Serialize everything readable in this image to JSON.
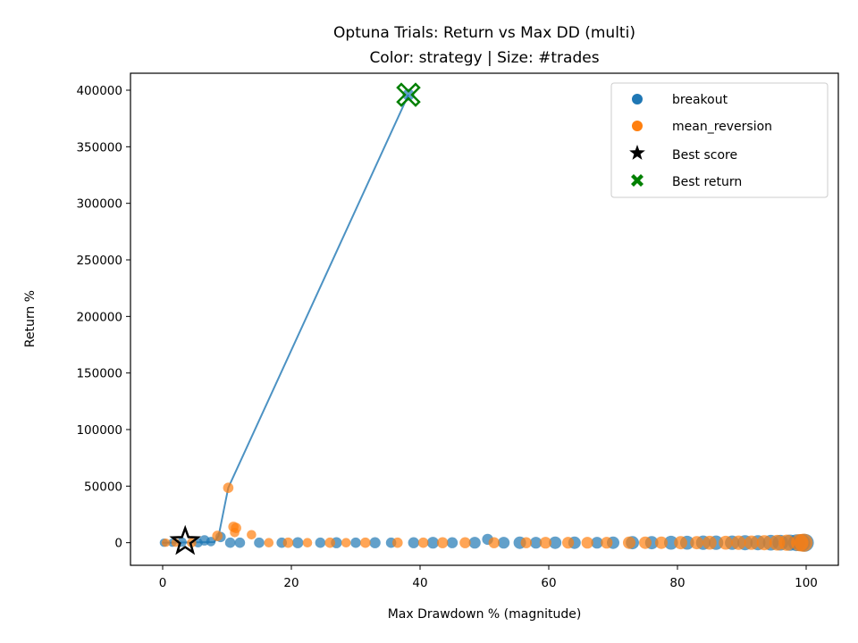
{
  "chart_data": {
    "type": "scatter",
    "title": "Optuna Trials: Return vs Max DD (multi)",
    "subtitle": "Color: strategy | Size: #trades",
    "xlabel": "Max Drawdown % (magnitude)",
    "ylabel": "Return %",
    "xlim": [
      -5,
      105
    ],
    "ylim": [
      -20000,
      415000
    ],
    "x_ticks": [
      0,
      20,
      40,
      60,
      80,
      100
    ],
    "y_ticks": [
      0,
      50000,
      100000,
      150000,
      200000,
      250000,
      300000,
      350000,
      400000
    ],
    "grid": false,
    "legend_position": "top-right",
    "colors": {
      "breakout": "#1f77b4",
      "mean_reversion": "#ff7f0e",
      "best_score": "#000000",
      "best_return": "#008000"
    },
    "series": [
      {
        "name": "breakout",
        "points": [
          [
            0.2,
            0,
            20
          ],
          [
            1.5,
            0,
            20
          ],
          [
            3.0,
            500,
            25
          ],
          [
            5.5,
            0,
            25
          ],
          [
            6.5,
            2000,
            30
          ],
          [
            7.5,
            1000,
            25
          ],
          [
            9.0,
            5000,
            30
          ],
          [
            10.5,
            0,
            30
          ],
          [
            12.0,
            0,
            30
          ],
          [
            15.0,
            0,
            30
          ],
          [
            18.5,
            0,
            30
          ],
          [
            21.0,
            0,
            35
          ],
          [
            24.5,
            0,
            30
          ],
          [
            27.0,
            0,
            35
          ],
          [
            30.0,
            0,
            30
          ],
          [
            33.0,
            0,
            35
          ],
          [
            35.5,
            0,
            30
          ],
          [
            38.2,
            396000,
            40
          ],
          [
            39.0,
            0,
            35
          ],
          [
            42.0,
            0,
            40
          ],
          [
            45.0,
            0,
            35
          ],
          [
            48.5,
            0,
            40
          ],
          [
            50.5,
            3000,
            35
          ],
          [
            53.0,
            0,
            40
          ],
          [
            55.5,
            0,
            45
          ],
          [
            58.0,
            0,
            40
          ],
          [
            61.0,
            0,
            45
          ],
          [
            64.0,
            0,
            45
          ],
          [
            67.5,
            0,
            40
          ],
          [
            70.0,
            0,
            45
          ],
          [
            73.0,
            0,
            50
          ],
          [
            76.0,
            0,
            50
          ],
          [
            79.0,
            0,
            55
          ],
          [
            81.5,
            0,
            55
          ],
          [
            84.0,
            0,
            60
          ],
          [
            86.0,
            0,
            60
          ],
          [
            88.5,
            0,
            60
          ],
          [
            90.5,
            0,
            65
          ],
          [
            92.5,
            0,
            65
          ],
          [
            94.5,
            0,
            70
          ],
          [
            96.0,
            0,
            70
          ],
          [
            97.5,
            0,
            75
          ],
          [
            98.5,
            0,
            80
          ],
          [
            99.3,
            0,
            85
          ],
          [
            99.8,
            0,
            90
          ]
        ]
      },
      {
        "name": "mean_reversion",
        "points": [
          [
            0.5,
            0,
            20
          ],
          [
            2.0,
            0,
            20
          ],
          [
            4.5,
            0,
            25
          ],
          [
            8.5,
            6000,
            30
          ],
          [
            10.2,
            48500,
            30
          ],
          [
            11.0,
            14000,
            30
          ],
          [
            11.4,
            13000,
            30
          ],
          [
            11.2,
            9000,
            25
          ],
          [
            13.8,
            7000,
            25
          ],
          [
            16.5,
            0,
            25
          ],
          [
            19.5,
            0,
            30
          ],
          [
            22.5,
            0,
            25
          ],
          [
            26.0,
            0,
            30
          ],
          [
            28.5,
            0,
            25
          ],
          [
            31.5,
            0,
            30
          ],
          [
            36.5,
            0,
            30
          ],
          [
            40.5,
            0,
            30
          ],
          [
            43.5,
            0,
            35
          ],
          [
            47.0,
            0,
            35
          ],
          [
            51.5,
            0,
            35
          ],
          [
            56.5,
            0,
            35
          ],
          [
            59.5,
            0,
            40
          ],
          [
            63.0,
            0,
            40
          ],
          [
            66.0,
            0,
            40
          ],
          [
            69.0,
            0,
            40
          ],
          [
            72.5,
            0,
            45
          ],
          [
            75.0,
            0,
            45
          ],
          [
            77.5,
            0,
            45
          ],
          [
            80.5,
            0,
            50
          ],
          [
            83.0,
            0,
            50
          ],
          [
            85.0,
            0,
            55
          ],
          [
            87.5,
            0,
            55
          ],
          [
            89.5,
            0,
            60
          ],
          [
            91.5,
            0,
            60
          ],
          [
            93.5,
            0,
            65
          ],
          [
            95.5,
            0,
            70
          ],
          [
            97.0,
            0,
            75
          ],
          [
            99.0,
            0,
            85
          ],
          [
            99.6,
            0,
            95
          ]
        ]
      }
    ],
    "frontier_line": {
      "x": [
        0,
        8,
        8.7,
        10.2,
        38.2
      ],
      "y": [
        0,
        500,
        6000,
        48500,
        396000
      ]
    },
    "best_score": {
      "x": 3.5,
      "y": 1000
    },
    "best_return": {
      "x": 38.2,
      "y": 396000
    },
    "legend_entries": [
      "breakout",
      "mean_reversion",
      "Best score",
      "Best return"
    ]
  }
}
